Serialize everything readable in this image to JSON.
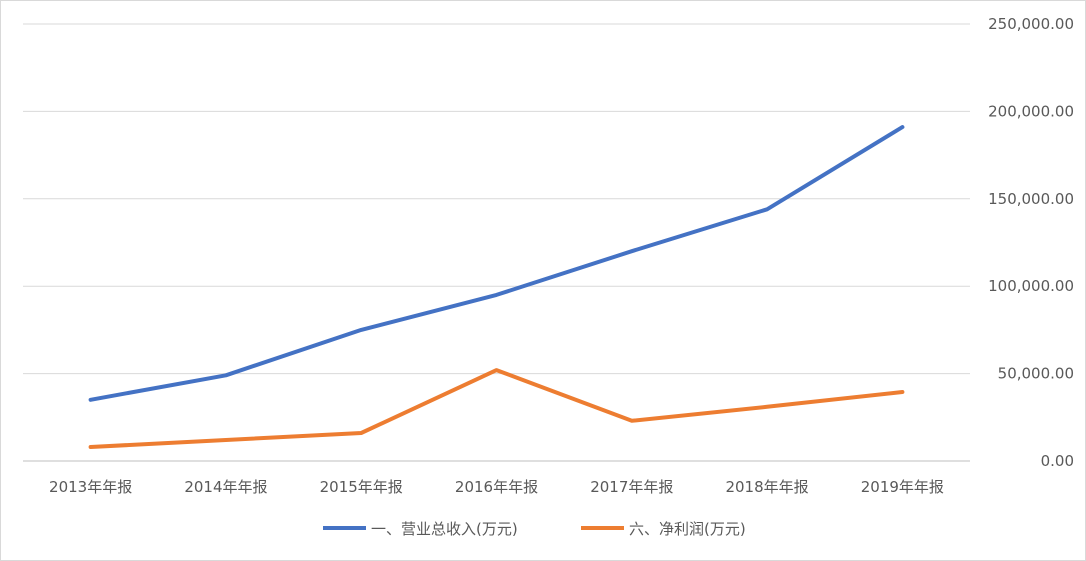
{
  "chart_data": {
    "type": "line",
    "title": "",
    "xlabel": "",
    "ylabel": "",
    "categories": [
      "2013年年报",
      "2014年年报",
      "2015年年报",
      "2016年年报",
      "2017年年报",
      "2018年年报",
      "2019年年报"
    ],
    "series": [
      {
        "name": "一、营业总收入(万元)",
        "color": "#4472C4",
        "values": [
          35000,
          49000,
          75000,
          95000,
          120000,
          144000,
          191000
        ]
      },
      {
        "name": "六、净利润(万元)",
        "color": "#ED7D31",
        "values": [
          8000,
          12000,
          16000,
          52000,
          23000,
          31000,
          39500
        ]
      }
    ],
    "ylim": [
      0,
      250000
    ],
    "yticks": [
      "0.00",
      "50,000.00",
      "100,000.00",
      "150,000.00",
      "200,000.00",
      "250,000.00"
    ],
    "y_axis_side": "right",
    "grid": true,
    "legend_position": "bottom"
  }
}
